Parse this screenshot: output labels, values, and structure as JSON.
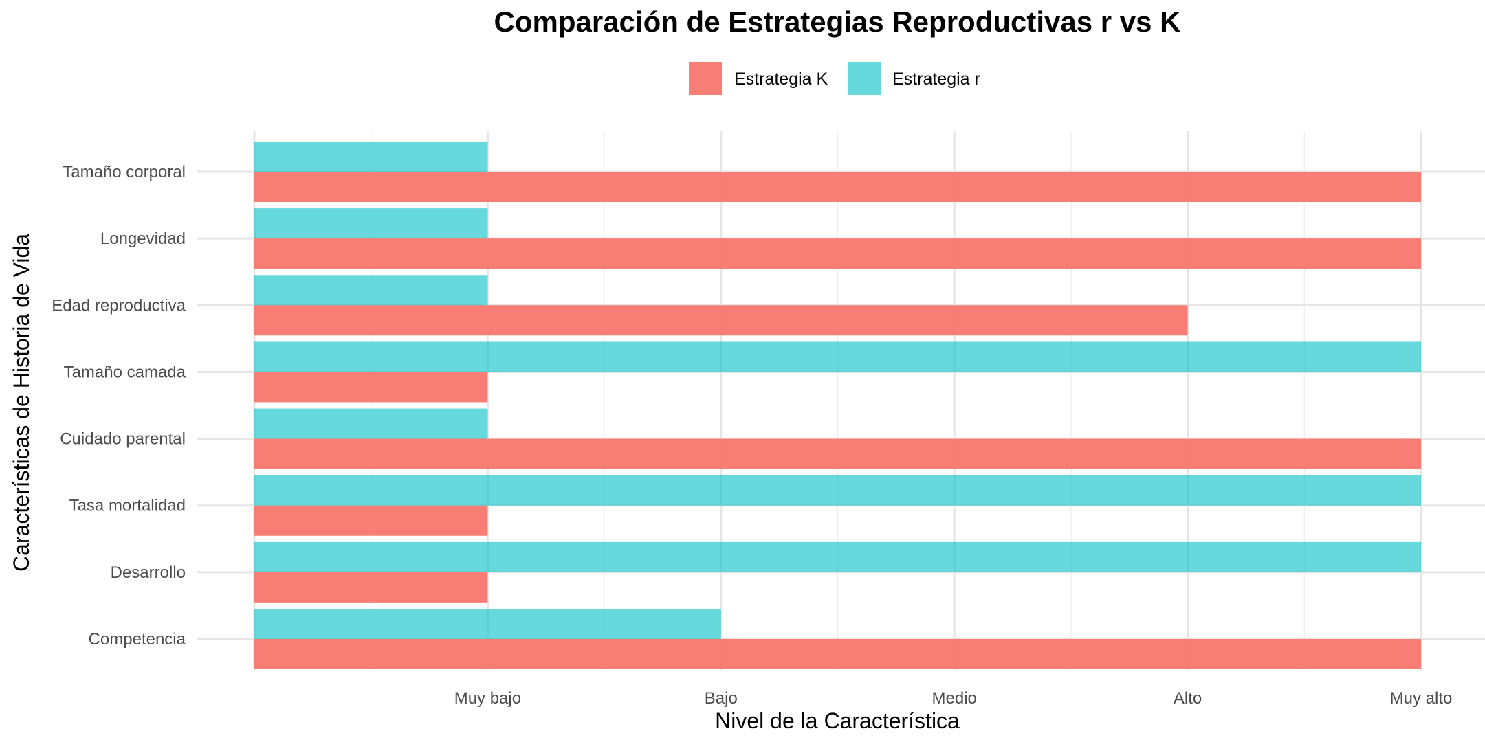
{
  "chart_data": {
    "type": "bar",
    "orientation": "horizontal",
    "title": "Comparación de Estrategias Reproductivas r vs K",
    "xlabel": "Nivel de la Característica",
    "ylabel": "Características de Historia de Vida",
    "categories": [
      "Tamaño corporal",
      "Longevidad",
      "Edad reproductiva",
      "Tamaño camada",
      "Cuidado parental",
      "Tasa mortalidad",
      "Desarrollo",
      "Competencia"
    ],
    "x_ticks": [
      {
        "value": 1,
        "label": "Muy bajo"
      },
      {
        "value": 2,
        "label": "Bajo"
      },
      {
        "value": 3,
        "label": "Medio"
      },
      {
        "value": 4,
        "label": "Alto"
      },
      {
        "value": 5,
        "label": "Muy alto"
      }
    ],
    "xlim": [
      0,
      5
    ],
    "series": [
      {
        "name": "Estrategia K",
        "color": "#F8766D",
        "values": [
          5,
          5,
          4,
          1,
          5,
          1,
          1,
          5
        ]
      },
      {
        "name": "Estrategia r",
        "color": "#00BFC4",
        "values": [
          1,
          1,
          1,
          5,
          1,
          5,
          5,
          2
        ]
      }
    ],
    "legend_position": "top",
    "grid": true
  }
}
